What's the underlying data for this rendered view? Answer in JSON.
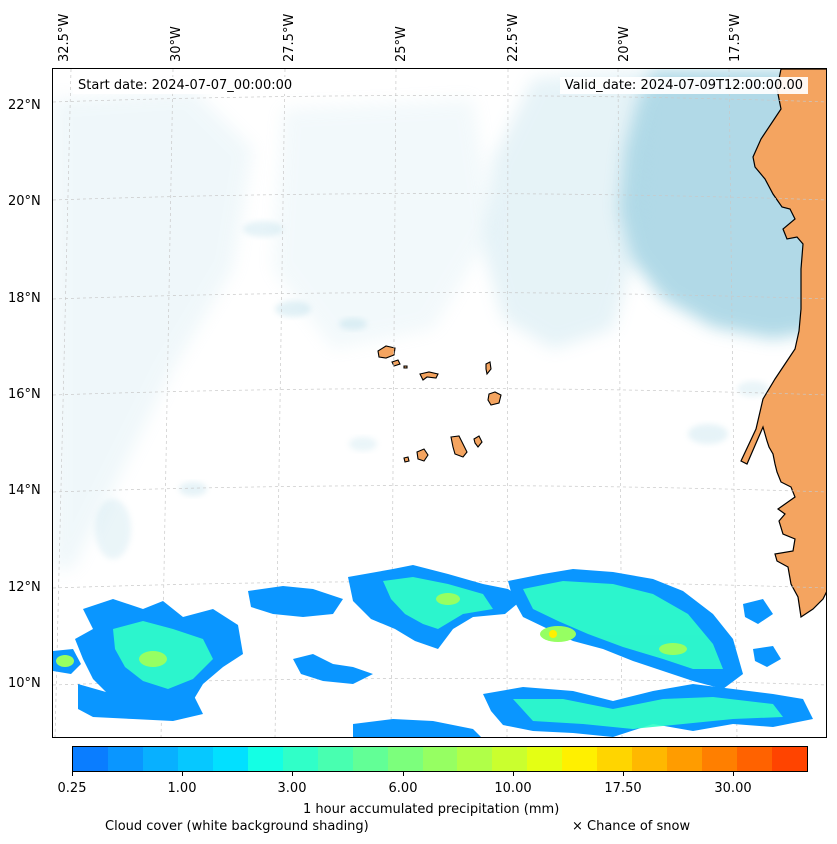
{
  "map": {
    "start_date": "Start date: 2024-07-07_00:00:00",
    "valid_date": "Valid_date: 2024-07-09T12:00:00.00",
    "lon_labels": [
      "32.5°W",
      "30°W",
      "27.5°W",
      "25°W",
      "22.5°W",
      "20°W",
      "17.5°W"
    ],
    "lat_labels": [
      "22°N",
      "20°N",
      "18°N",
      "16°N",
      "14°N",
      "12°N",
      "10°N"
    ],
    "colors": {
      "land": "#f4a460",
      "cloud": "#add8e6",
      "coastline": "#000000"
    }
  },
  "colorbar": {
    "colors": [
      "#0a7dff",
      "#0a96ff",
      "#08b0ff",
      "#06c8ff",
      "#02e0ff",
      "#14ffe4",
      "#30ffc8",
      "#48ffb0",
      "#62ff96",
      "#7cff7c",
      "#96ff62",
      "#b0ff48",
      "#caff2e",
      "#e4ff14",
      "#fff000",
      "#ffd500",
      "#ffb800",
      "#ff9c00",
      "#ff7f00",
      "#ff6200",
      "#ff4400"
    ],
    "tick_labels": [
      "0.25",
      "1.00",
      "3.00",
      "6.00",
      "10.00",
      "17.50",
      "30.00"
    ],
    "label": "1 hour accumulated precipitation (mm)"
  },
  "legend": {
    "cloud_note": "Cloud cover (white background shading)",
    "snow_note": "× Chance of snow"
  }
}
